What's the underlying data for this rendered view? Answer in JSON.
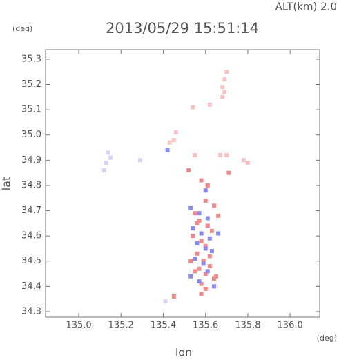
{
  "chart_data": {
    "type": "scatter",
    "title": "2013/05/29 15:51:14",
    "subtitle": "ALT(km) 2.0",
    "y_unit": "(deg)",
    "x_unit": "(deg)",
    "x_label": "lon",
    "y_label": "lat",
    "xlim": [
      134.843,
      136.14
    ],
    "ylim": [
      34.278,
      35.338
    ],
    "xticks": [
      {
        "value": 135.0,
        "label": "135.0"
      },
      135.2,
      135.4,
      135.6,
      135.8,
      {
        "value": 136.0,
        "label": "136.0"
      }
    ],
    "yticks": [
      34.3,
      34.4,
      34.5,
      34.6,
      34.7,
      34.8,
      34.9,
      {
        "value": 35.0,
        "label": "35.0"
      },
      35.1,
      35.2,
      35.3
    ],
    "series": [
      {
        "color": "#f6c4c4",
        "x": [
          135.7,
          135.69,
          135.68,
          135.69,
          135.62,
          135.54,
          135.46,
          135.43,
          135.45,
          135.55,
          135.67,
          135.7,
          135.78,
          135.8,
          135.68
        ],
        "y": [
          35.25,
          35.22,
          35.19,
          35.17,
          35.12,
          35.11,
          35.01,
          34.97,
          34.98,
          34.92,
          34.92,
          34.92,
          34.9,
          34.89,
          35.15
        ]
      },
      {
        "color": "#d4d4f6",
        "x": [
          135.14,
          135.13,
          135.12,
          135.15,
          135.29,
          135.41
        ],
        "y": [
          34.93,
          34.89,
          34.86,
          34.91,
          34.9,
          34.34
        ]
      },
      {
        "color": "#ee8a8a",
        "x": [
          135.52,
          135.58,
          135.61,
          135.6,
          135.64,
          135.55,
          135.57,
          135.61,
          135.63,
          135.54,
          135.58,
          135.6,
          135.56,
          135.62,
          135.59,
          135.57,
          135.6,
          135.64,
          135.55,
          135.58,
          135.62,
          135.65,
          135.6,
          135.58,
          135.45,
          135.56,
          135.71,
          135.66,
          135.53
        ],
        "y": [
          34.86,
          34.82,
          34.8,
          34.74,
          34.72,
          34.69,
          34.66,
          34.64,
          34.62,
          34.6,
          34.58,
          34.56,
          34.53,
          34.52,
          34.5,
          34.47,
          34.45,
          34.43,
          34.46,
          34.41,
          34.48,
          34.44,
          34.39,
          34.37,
          34.36,
          34.65,
          34.85,
          34.68,
          34.5
        ]
      },
      {
        "color": "#8a8aee",
        "x": [
          135.53,
          135.57,
          135.61,
          135.54,
          135.58,
          135.62,
          135.56,
          135.6,
          135.63,
          135.55,
          135.59,
          135.61,
          135.57,
          135.64,
          135.53,
          135.42,
          135.6,
          135.66
        ],
        "y": [
          34.71,
          34.69,
          34.67,
          34.63,
          34.61,
          34.59,
          34.57,
          34.55,
          34.54,
          34.51,
          34.49,
          34.46,
          34.42,
          34.4,
          34.44,
          34.94,
          34.78,
          34.61
        ]
      }
    ]
  }
}
